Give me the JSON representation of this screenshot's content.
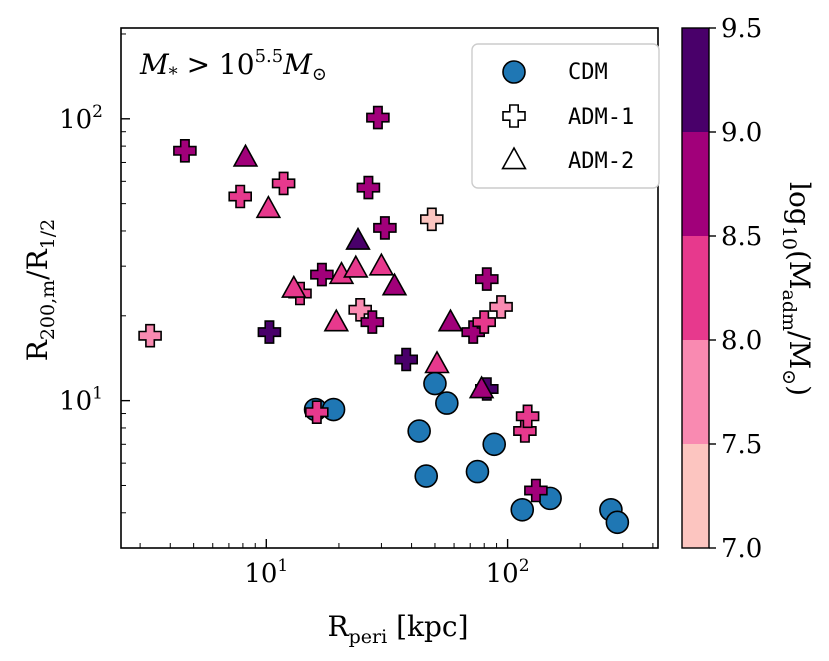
{
  "chart_data": {
    "type": "scatter",
    "annotation": "M* > 10^5.5 M⊙",
    "annotation_parts": {
      "main": "M",
      "sub": "*",
      "rel": " > 10",
      "exp": "5.5",
      "unit": "M",
      "unit_sub": "⊙"
    },
    "xlabel": {
      "main": "R",
      "sub": "peri",
      "rest": " [kpc]"
    },
    "ylabel": {
      "main": "R",
      "sub1": "200,m",
      "mid": "/R",
      "sub2": "1/2"
    },
    "xscale": "log",
    "yscale": "log",
    "xlim": [
      2.5,
      420
    ],
    "ylim": [
      3,
      210
    ],
    "x_major_ticks": [
      {
        "value": 10,
        "base": "10",
        "exp": "1"
      },
      {
        "value": 100,
        "base": "10",
        "exp": "2"
      }
    ],
    "y_major_ticks": [
      {
        "value": 10,
        "base": "10",
        "exp": "1"
      },
      {
        "value": 100,
        "base": "10",
        "exp": "2"
      }
    ],
    "legend": {
      "position": "top-right",
      "entries": [
        {
          "label": "CDM",
          "marker": "circle"
        },
        {
          "label": "ADM-1",
          "marker": "plus"
        },
        {
          "label": "ADM-2",
          "marker": "triangle"
        }
      ]
    },
    "colorbar": {
      "label": "log10(Madm/M⊙)",
      "label_parts": {
        "pre": "log",
        "pre_sub": "10",
        "open": "(M",
        "sub": "adm",
        "mid": "/M",
        "sub2": "⊙",
        "close": ")"
      },
      "min": 7.0,
      "max": 9.5,
      "ticks": [
        "7.0",
        "7.5",
        "8.0",
        "8.5",
        "9.0",
        "9.5"
      ],
      "bins": [
        {
          "from": 7.0,
          "to": 7.5,
          "color": "#fcc5c0"
        },
        {
          "from": 7.5,
          "to": 8.0,
          "color": "#f98ab1"
        },
        {
          "from": 8.0,
          "to": 8.5,
          "color": "#e7398d"
        },
        {
          "from": 8.5,
          "to": 9.0,
          "color": "#a1007a"
        },
        {
          "from": 9.0,
          "to": 9.5,
          "color": "#49006a"
        }
      ]
    },
    "cdm_color": "#1f77b4",
    "series": [
      {
        "name": "CDM",
        "marker": "circle",
        "points": [
          {
            "x": 16.0,
            "y": 9.3
          },
          {
            "x": 19.0,
            "y": 9.3
          },
          {
            "x": 43.0,
            "y": 7.8
          },
          {
            "x": 46.0,
            "y": 5.4
          },
          {
            "x": 50.0,
            "y": 11.5
          },
          {
            "x": 56.0,
            "y": 9.8
          },
          {
            "x": 75.0,
            "y": 5.6
          },
          {
            "x": 88.0,
            "y": 7.0
          },
          {
            "x": 115.0,
            "y": 4.1
          },
          {
            "x": 150.0,
            "y": 4.5
          },
          {
            "x": 268.0,
            "y": 4.1
          },
          {
            "x": 285.0,
            "y": 3.7
          }
        ]
      },
      {
        "name": "ADM-1",
        "marker": "plus",
        "points": [
          {
            "x": 3.3,
            "y": 17.0,
            "c": 7.8
          },
          {
            "x": 4.6,
            "y": 77.0,
            "c": 8.8
          },
          {
            "x": 7.8,
            "y": 53.0,
            "c": 8.2
          },
          {
            "x": 10.3,
            "y": 17.5,
            "c": 9.2
          },
          {
            "x": 11.8,
            "y": 59.0,
            "c": 8.2
          },
          {
            "x": 13.8,
            "y": 24.0,
            "c": 8.2
          },
          {
            "x": 16.2,
            "y": 9.1,
            "c": 8.2
          },
          {
            "x": 17.0,
            "y": 28.0,
            "c": 8.7
          },
          {
            "x": 24.5,
            "y": 21.0,
            "c": 7.8
          },
          {
            "x": 26.5,
            "y": 57.0,
            "c": 8.7
          },
          {
            "x": 27.5,
            "y": 19.0,
            "c": 8.7
          },
          {
            "x": 29.0,
            "y": 101.0,
            "c": 8.7
          },
          {
            "x": 31.0,
            "y": 41.0,
            "c": 8.7
          },
          {
            "x": 38.0,
            "y": 14.0,
            "c": 9.2
          },
          {
            "x": 48.5,
            "y": 44.0,
            "c": 7.3
          },
          {
            "x": 72.0,
            "y": 17.5,
            "c": 8.7
          },
          {
            "x": 80.0,
            "y": 19.0,
            "c": 8.2
          },
          {
            "x": 82.0,
            "y": 27.0,
            "c": 8.7
          },
          {
            "x": 82.0,
            "y": 11.0,
            "c": 9.2
          },
          {
            "x": 94.0,
            "y": 21.5,
            "c": 7.8
          },
          {
            "x": 118.0,
            "y": 7.8,
            "c": 8.2
          },
          {
            "x": 121.0,
            "y": 8.8,
            "c": 8.2
          },
          {
            "x": 131.0,
            "y": 4.8,
            "c": 8.7
          }
        ]
      },
      {
        "name": "ADM-2",
        "marker": "triangle",
        "points": [
          {
            "x": 8.2,
            "y": 73.0,
            "c": 8.7
          },
          {
            "x": 10.2,
            "y": 48.0,
            "c": 8.2
          },
          {
            "x": 13.0,
            "y": 25.0,
            "c": 8.2
          },
          {
            "x": 19.5,
            "y": 19.0,
            "c": 8.2
          },
          {
            "x": 20.5,
            "y": 28.0,
            "c": 8.2
          },
          {
            "x": 23.5,
            "y": 29.5,
            "c": 8.2
          },
          {
            "x": 24.0,
            "y": 37.0,
            "c": 9.2
          },
          {
            "x": 30.0,
            "y": 30.0,
            "c": 8.2
          },
          {
            "x": 34.0,
            "y": 25.5,
            "c": 8.7
          },
          {
            "x": 51.0,
            "y": 13.5,
            "c": 8.2
          },
          {
            "x": 58.0,
            "y": 19.0,
            "c": 8.7
          },
          {
            "x": 78.0,
            "y": 11.0,
            "c": 8.7
          }
        ]
      }
    ]
  }
}
